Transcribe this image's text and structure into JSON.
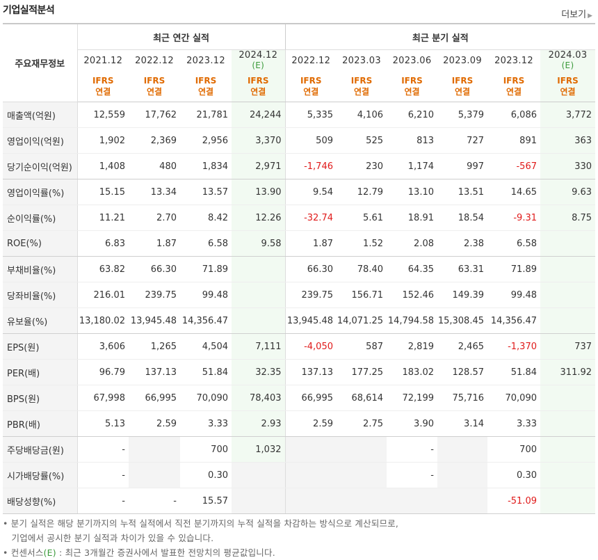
{
  "header": {
    "title": "기업실적분석",
    "more_label": "더보기"
  },
  "table": {
    "label_header": "주요재무정보",
    "annual_group": "최근 연간 실적",
    "quarterly_group": "최근 분기 실적",
    "annual_periods": [
      {
        "year": "2021.12",
        "est": ""
      },
      {
        "year": "2022.12",
        "est": ""
      },
      {
        "year": "2023.12",
        "est": ""
      },
      {
        "year": "2024.12",
        "est": "(E)"
      }
    ],
    "quarterly_periods": [
      {
        "year": "2022.12",
        "est": ""
      },
      {
        "year": "2023.03",
        "est": ""
      },
      {
        "year": "2023.06",
        "est": ""
      },
      {
        "year": "2023.09",
        "est": ""
      },
      {
        "year": "2023.12",
        "est": ""
      },
      {
        "year": "2024.03",
        "est": "(E)"
      }
    ],
    "ifrs_line1": "IFRS",
    "ifrs_line2": "연결",
    "rows": [
      {
        "label": "매출액(억원)",
        "values": [
          "12,559",
          "17,762",
          "21,781",
          "24,244",
          "5,335",
          "4,106",
          "6,210",
          "5,379",
          "6,086",
          "3,772"
        ]
      },
      {
        "label": "영업이익(억원)",
        "values": [
          "1,902",
          "2,369",
          "2,956",
          "3,370",
          "509",
          "525",
          "813",
          "727",
          "891",
          "363"
        ]
      },
      {
        "label": "당기순이익(억원)",
        "values": [
          "1,408",
          "480",
          "1,834",
          "2,971",
          "-1,746",
          "230",
          "1,174",
          "997",
          "-567",
          "330"
        ]
      },
      {
        "label": "영업이익률(%)",
        "values": [
          "15.15",
          "13.34",
          "13.57",
          "13.90",
          "9.54",
          "12.79",
          "13.10",
          "13.51",
          "14.65",
          "9.63"
        ]
      },
      {
        "label": "순이익률(%)",
        "values": [
          "11.21",
          "2.70",
          "8.42",
          "12.26",
          "-32.74",
          "5.61",
          "18.91",
          "18.54",
          "-9.31",
          "8.75"
        ]
      },
      {
        "label": "ROE(%)",
        "values": [
          "6.83",
          "1.87",
          "6.58",
          "9.58",
          "1.87",
          "1.52",
          "2.08",
          "2.38",
          "6.58",
          ""
        ]
      },
      {
        "label": "부채비율(%)",
        "values": [
          "63.82",
          "66.30",
          "71.89",
          "",
          "66.30",
          "78.40",
          "64.35",
          "63.31",
          "71.89",
          ""
        ]
      },
      {
        "label": "당좌비율(%)",
        "values": [
          "216.01",
          "239.75",
          "99.48",
          "",
          "239.75",
          "156.71",
          "152.46",
          "149.39",
          "99.48",
          ""
        ]
      },
      {
        "label": "유보율(%)",
        "values": [
          "13,180.02",
          "13,945.48",
          "14,356.47",
          "",
          "13,945.48",
          "14,071.25",
          "14,794.58",
          "15,308.45",
          "14,356.47",
          ""
        ]
      },
      {
        "label": "EPS(원)",
        "values": [
          "3,606",
          "1,265",
          "4,504",
          "7,111",
          "-4,050",
          "587",
          "2,819",
          "2,465",
          "-1,370",
          "737"
        ]
      },
      {
        "label": "PER(배)",
        "values": [
          "96.79",
          "137.13",
          "51.84",
          "32.35",
          "137.13",
          "177.25",
          "183.02",
          "128.57",
          "51.84",
          "311.92"
        ]
      },
      {
        "label": "BPS(원)",
        "values": [
          "67,998",
          "66,995",
          "70,090",
          "78,403",
          "66,995",
          "68,614",
          "72,199",
          "75,716",
          "70,090",
          ""
        ]
      },
      {
        "label": "PBR(배)",
        "values": [
          "5.13",
          "2.59",
          "3.33",
          "2.93",
          "2.59",
          "2.75",
          "3.90",
          "3.14",
          "3.33",
          ""
        ]
      },
      {
        "label": "주당배당금(원)",
        "values": [
          "-",
          "",
          "700",
          "1,032",
          "",
          "",
          "-",
          "",
          "700",
          ""
        ]
      },
      {
        "label": "시가배당률(%)",
        "values": [
          "-",
          "",
          "0.30",
          "",
          "",
          "",
          "-",
          "",
          "0.30",
          ""
        ]
      },
      {
        "label": "배당성향(%)",
        "values": [
          "-",
          "-",
          "15.57",
          "",
          "",
          "",
          "",
          "",
          "-51.09",
          ""
        ]
      }
    ]
  },
  "notes": [
    "• 분기 실적은 해당 분기까지의 누적 실적에서 직전 분기까지의 누적 실적을 차감하는 방식으로 계산되므로,",
    "   기업에서 공시한 분기 실적과 차이가 있을 수 있습니다."
  ],
  "note3": {
    "prefix": "• 컨센서스",
    "est": "(E)",
    "suffix": " : 최근 3개월간 증권사에서 발표한 전망치의 평균값입니다."
  },
  "colors": {
    "estimate_bg": "#f2faf2",
    "negative": "#e01a1a",
    "ifrs": "#e06a00",
    "estimate_text": "#3a9a3a"
  }
}
